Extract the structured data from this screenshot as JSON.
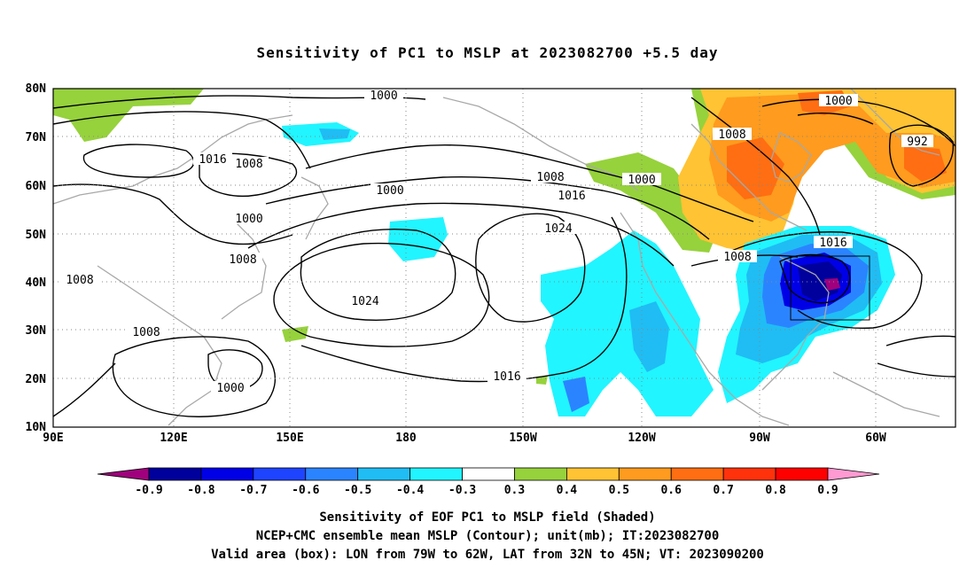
{
  "title": "Sensitivity of PC1 to MSLP at 2023082700 +5.5 day",
  "map": {
    "lat_labels": [
      "80N",
      "70N",
      "60N",
      "50N",
      "40N",
      "30N",
      "20N",
      "10N"
    ],
    "lon_labels": [
      "90E",
      "120E",
      "150E",
      "180",
      "150W",
      "120W",
      "90W",
      "60W"
    ],
    "domain": {
      "lon": [
        "90E",
        "90W→60W+ (≈50W)"
      ],
      "lat": [
        "10N",
        "80N"
      ]
    },
    "grid": "dotted",
    "contour_labels": [
      {
        "text": "1000",
        "id": "c1000a"
      },
      {
        "text": "1016",
        "id": "c1016a"
      },
      {
        "text": "1008",
        "id": "c1008a"
      },
      {
        "text": "1000",
        "id": "c1000b"
      },
      {
        "text": "1000",
        "id": "c1000c"
      },
      {
        "text": "1008",
        "id": "c1008b"
      },
      {
        "text": "1008",
        "id": "c1008c"
      },
      {
        "text": "1008",
        "id": "c1008d"
      },
      {
        "text": "1024",
        "id": "c1024a"
      },
      {
        "text": "1000",
        "id": "c1000d"
      },
      {
        "text": "1008",
        "id": "c1008e"
      },
      {
        "text": "1016",
        "id": "c1016b"
      },
      {
        "text": "1000",
        "id": "c1000e"
      },
      {
        "text": "1024",
        "id": "c1024b"
      },
      {
        "text": "1016",
        "id": "c1016c"
      },
      {
        "text": "1008",
        "id": "c1008f"
      },
      {
        "text": "1000",
        "id": "c1000f"
      },
      {
        "text": "992",
        "id": "c992"
      },
      {
        "text": "1008",
        "id": "c1008g"
      },
      {
        "text": "1016",
        "id": "c1016d"
      }
    ]
  },
  "colorbar": {
    "colors": [
      "#a0007d",
      "#00009c",
      "#0000e6",
      "#1f44ff",
      "#2b84ff",
      "#1fbdf4",
      "#21f5ff",
      "#ffffff",
      "#96d23c",
      "#ffc333",
      "#ff9b1e",
      "#ff6e12",
      "#ff320c",
      "#ff0000",
      "#ff9ad2"
    ],
    "labels": [
      "-0.9",
      "-0.8",
      "-0.7",
      "-0.6",
      "-0.5",
      "-0.4",
      "-0.3",
      "0.3",
      "0.4",
      "0.5",
      "0.6",
      "0.7",
      "0.8",
      "0.9"
    ]
  },
  "captions": {
    "line1": "Sensitivity of EOF PC1 to MSLP field (Shaded)",
    "line2": "NCEP+CMC ensemble mean MSLP (Contour); unit(mb); IT:2023082700",
    "line3": "Valid area (box): LON from 79W to 62W, LAT from 32N to 45N; VT: 2023090200"
  }
}
